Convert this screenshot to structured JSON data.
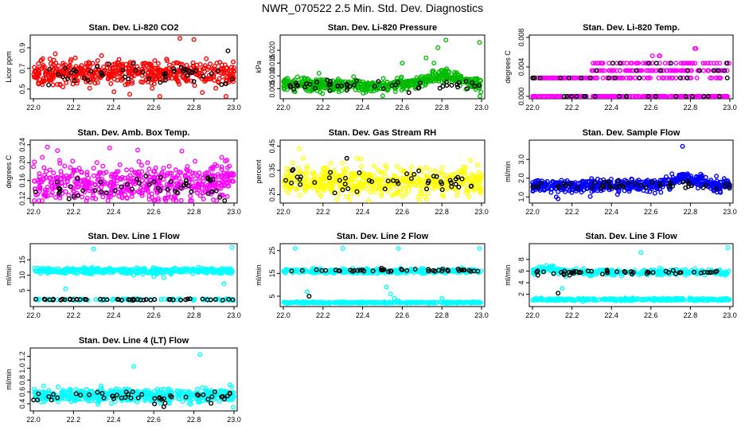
{
  "title": "NWR_070522  2.5 Min. Std. Dev. Diagnostics",
  "chart_data": [
    {
      "type": "scatter",
      "title": "Stan. Dev. Li-820 CO2",
      "ylabel": "Licor ppm",
      "xlim": [
        22.0,
        23.0
      ],
      "xticks": [
        "22.0",
        "22.2",
        "22.4",
        "22.6",
        "22.8",
        "23.0"
      ],
      "ylim": [
        0.43,
        1.0
      ],
      "yticks": [
        "0.5",
        "0.7",
        "0.9"
      ],
      "series": [
        {
          "color": "#ff0000",
          "count": 520,
          "base": 0.66,
          "spread": 0.055,
          "outliers": [
            [
              22.73,
              0.99
            ],
            [
              22.8,
              0.98
            ],
            [
              22.63,
              0.42
            ],
            [
              22.96,
              0.43
            ],
            [
              22.48,
              0.45
            ]
          ]
        },
        {
          "color": "#000000",
          "count": 48,
          "base": 0.64,
          "spread": 0.05,
          "outliers": [
            [
              22.97,
              0.87
            ]
          ]
        }
      ]
    },
    {
      "type": "scatter",
      "title": "Stan. Dev. Li-820 Pressure",
      "ylabel": "kPa",
      "xlim": [
        22.0,
        23.0
      ],
      "xticks": [
        "22.0",
        "22.2",
        "22.4",
        "22.6",
        "22.8",
        "23.0"
      ],
      "ylim": [
        0.002,
        0.025
      ],
      "yticks": [
        "0.005",
        "0.010",
        "0.015",
        "0.020"
      ],
      "series": [
        {
          "color": "#00bb00",
          "count": 520,
          "base": 0.0065,
          "spread": 0.0013,
          "trend": [
            [
              22.62,
              23.0,
              0.004
            ]
          ],
          "outliers": [
            [
              22.82,
              0.024
            ],
            [
              22.99,
              0.023
            ],
            [
              22.78,
              0.021
            ],
            [
              22.72,
              0.017
            ],
            [
              22.76,
              0.015
            ],
            [
              22.6,
              0.015
            ],
            [
              22.18,
              0.011
            ]
          ]
        },
        {
          "color": "#000000",
          "count": 48,
          "base": 0.0065,
          "spread": 0.001
        }
      ]
    },
    {
      "type": "scatter",
      "title": "Stan. Dev. Li-820 Temp.",
      "ylabel": "degrees C",
      "xlim": [
        22.0,
        23.0
      ],
      "xticks": [
        "22.0",
        "22.2",
        "22.4",
        "22.6",
        "22.8",
        "23.0"
      ],
      "ylim": [
        0.0,
        0.008
      ],
      "yticks": [
        "0.000",
        "0.004",
        "0.008"
      ],
      "discrete_levels": [
        0.0,
        0.0025,
        0.0035,
        0.0045,
        0.0055,
        0.0065
      ],
      "series": [
        {
          "color": "#ff00ff",
          "count": 520,
          "base": 0.0,
          "spread": 0.0,
          "mode": "levels"
        },
        {
          "color": "#000000",
          "count": 48,
          "base": 0.0,
          "spread": 0.0,
          "mode": "levels"
        }
      ]
    },
    {
      "type": "scatter",
      "title": "Stan. Dev. Amb. Box Temp.",
      "ylabel": "degrees C",
      "xlim": [
        22.0,
        23.0
      ],
      "xticks": [
        "22.0",
        "22.2",
        "22.4",
        "22.6",
        "22.8",
        "23.0"
      ],
      "ylim": [
        0.115,
        0.245
      ],
      "yticks": [
        "0.12",
        "0.16",
        "0.20",
        "0.24"
      ],
      "series": [
        {
          "color": "#ff00ff",
          "count": 520,
          "base": 0.155,
          "spread": 0.022,
          "outliers": [
            [
              22.07,
              0.235
            ],
            [
              22.38,
              0.233
            ],
            [
              22.12,
              0.227
            ],
            [
              22.52,
              0.228
            ],
            [
              22.74,
              0.226
            ]
          ]
        },
        {
          "color": "#000000",
          "count": 48,
          "base": 0.142,
          "spread": 0.014
        }
      ]
    },
    {
      "type": "scatter",
      "title": "Stan. Dev. Gas Stream RH",
      "ylabel": "percent",
      "xlim": [
        22.0,
        23.0
      ],
      "xticks": [
        "22.0",
        "22.2",
        "22.4",
        "22.6",
        "22.8",
        "23.0"
      ],
      "ylim": [
        0.225,
        0.465
      ],
      "yticks": [
        "0.25",
        "0.35",
        "0.45"
      ],
      "series": [
        {
          "color": "#ffff00",
          "count": 520,
          "base": 0.305,
          "spread": 0.028,
          "outliers": [
            [
              22.08,
              0.44
            ],
            [
              22.1,
              0.4
            ],
            [
              22.24,
              0.38
            ]
          ]
        },
        {
          "color": "#000000",
          "count": 48,
          "base": 0.305,
          "spread": 0.025,
          "outliers": [
            [
              22.32,
              0.4
            ]
          ]
        }
      ]
    },
    {
      "type": "scatter",
      "title": "Stan. Dev. Sample Flow",
      "ylabel": "ml/min",
      "xlim": [
        22.0,
        23.0
      ],
      "xticks": [
        "22.0",
        "22.2",
        "22.4",
        "22.6",
        "22.8",
        "23.0"
      ],
      "ylim": [
        0.8,
        3.9
      ],
      "yticks": [
        "1.0",
        "2.0",
        "3.0"
      ],
      "series": [
        {
          "color": "#0000ff",
          "count": 520,
          "base": 1.6,
          "spread": 0.16,
          "trend": [
            [
              22.62,
              22.92,
              0.45
            ]
          ],
          "outliers": [
            [
              22.76,
              3.7
            ],
            [
              22.12,
              1.0
            ],
            [
              22.13,
              0.9
            ],
            [
              22.62,
              1.2
            ],
            [
              22.58,
              1.3
            ]
          ]
        },
        {
          "color": "#000000",
          "count": 48,
          "base": 1.65,
          "spread": 0.12
        }
      ]
    },
    {
      "type": "scatter",
      "title": "Stan. Dev. Line 1 Flow",
      "ylabel": "ml/min",
      "xlim": [
        22.0,
        23.0
      ],
      "xticks": [
        "22.0",
        "22.2",
        "22.4",
        "22.6",
        "22.8",
        "23.0"
      ],
      "ylim": [
        0.5,
        19.5
      ],
      "yticks": [
        "5",
        "10",
        "15"
      ],
      "series": [
        {
          "color": "#00ffff",
          "count": 420,
          "base": 11.4,
          "spread": 0.45,
          "outliers": [
            [
              22.16,
              5.5
            ],
            [
              22.3,
              18.5
            ],
            [
              22.99,
              19.0
            ],
            [
              22.95,
              7.2
            ],
            [
              22.6,
              9.5
            ],
            [
              22.65,
              9.2
            ],
            [
              22.5,
              10.0
            ]
          ]
        },
        {
          "color": "#00ffff",
          "count": 80,
          "base": 2.0,
          "spread": 0.15
        },
        {
          "color": "#000000",
          "count": 48,
          "base": 2.0,
          "spread": 0.12
        }
      ]
    },
    {
      "type": "scatter",
      "title": "Stan. Dev. Line 2 Flow",
      "ylabel": "ml/min",
      "xlim": [
        22.0,
        23.0
      ],
      "xticks": [
        "22.0",
        "22.2",
        "22.4",
        "22.6",
        "22.8",
        "23.0"
      ],
      "ylim": [
        1.5,
        27
      ],
      "yticks": [
        "5",
        "15",
        "25"
      ],
      "series": [
        {
          "color": "#00ffff",
          "count": 320,
          "base": 16.0,
          "spread": 0.5,
          "outliers": [
            [
              22.12,
              7.0
            ],
            [
              22.52,
              9.0
            ],
            [
              22.54,
              6.0
            ],
            [
              22.56,
              4.0
            ],
            [
              22.58,
              3.0
            ],
            [
              22.8,
              4.0
            ],
            [
              22.06,
              26.0
            ],
            [
              22.3,
              26.0
            ],
            [
              22.58,
              26.0
            ],
            [
              22.99,
              26.0
            ]
          ]
        },
        {
          "color": "#00ffff",
          "count": 320,
          "base": 2.2,
          "spread": 0.15
        },
        {
          "color": "#000000",
          "count": 48,
          "base": 16.3,
          "spread": 0.3,
          "outliers": [
            [
              22.13,
              5.0
            ]
          ]
        }
      ]
    },
    {
      "type": "scatter",
      "title": "Stan. Dev. Line 3 Flow",
      "ylabel": "ml/min",
      "xlim": [
        22.0,
        23.0
      ],
      "xticks": [
        "22.0",
        "22.2",
        "22.4",
        "22.6",
        "22.8",
        "23.0"
      ],
      "ylim": [
        0.3,
        10.3
      ],
      "yticks": [
        "2",
        "4",
        "6",
        "8"
      ],
      "series": [
        {
          "color": "#00ffff",
          "count": 320,
          "base": 5.8,
          "spread": 0.25,
          "trend": [
            [
              22.0,
              22.15,
              0.8
            ]
          ],
          "outliers": [
            [
              22.15,
              3.0
            ],
            [
              22.99,
              10.0
            ],
            [
              22.55,
              9.2
            ]
          ]
        },
        {
          "color": "#00ffff",
          "count": 320,
          "base": 1.1,
          "spread": 0.1
        },
        {
          "color": "#000000",
          "count": 48,
          "base": 5.8,
          "spread": 0.2,
          "outliers": [
            [
              22.13,
              2.2
            ]
          ]
        }
      ]
    },
    {
      "type": "scatter",
      "title": "Stan. Dev. Line 4 (LT) Flow",
      "ylabel": "ml/min",
      "xlim": [
        22.0,
        23.0
      ],
      "xticks": [
        "22.0",
        "22.2",
        "22.4",
        "22.6",
        "22.8",
        "23.0"
      ],
      "ylim": [
        0.32,
        1.3
      ],
      "yticks": [
        "0.4",
        "0.6",
        "0.8",
        "1.0",
        "1.2"
      ],
      "series": [
        {
          "color": "#00ffff",
          "count": 520,
          "base": 0.54,
          "spread": 0.055,
          "outliers": [
            [
              22.83,
              1.23
            ],
            [
              22.5,
              1.03
            ],
            [
              22.05,
              0.7
            ],
            [
              22.98,
              0.72
            ]
          ]
        },
        {
          "color": "#000000",
          "count": 48,
          "base": 0.53,
          "spread": 0.05,
          "outliers": [
            [
              22.65,
              0.35
            ]
          ]
        }
      ]
    }
  ]
}
